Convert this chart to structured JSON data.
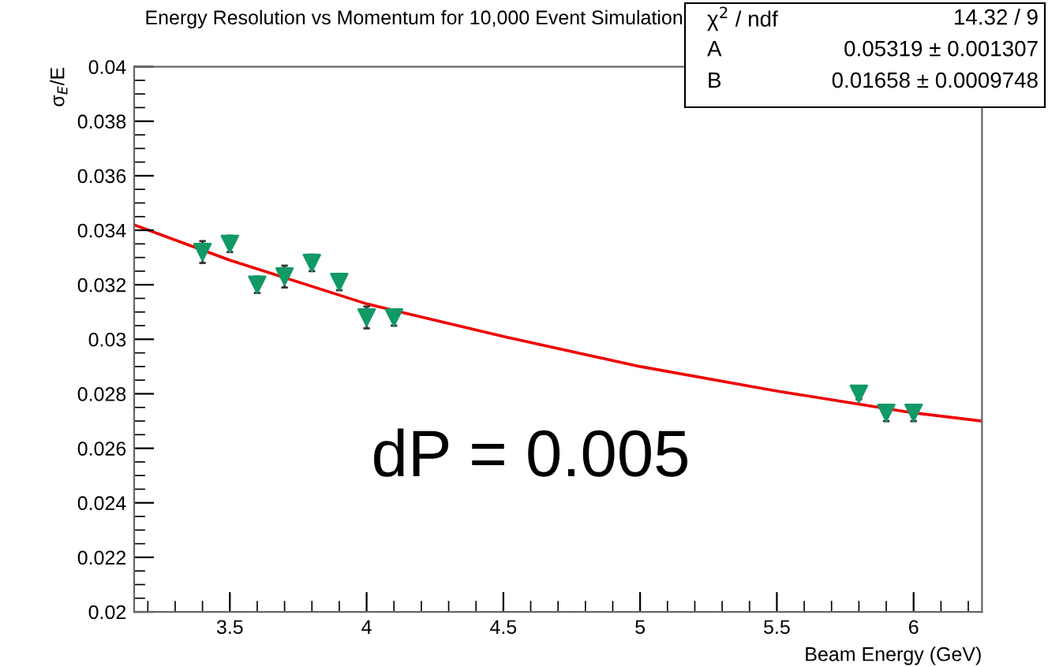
{
  "chart_data": {
    "type": "scatter",
    "title": "Energy Resolution vs Momentum for 10,000 Event Simulation",
    "xlabel": "Beam Energy (GeV)",
    "ylabel": "σ$_{E}$/E",
    "xlim": [
      3.15,
      6.25
    ],
    "ylim": [
      0.02,
      0.04
    ],
    "xticks": [
      3.5,
      4,
      4.5,
      5,
      5.5,
      6
    ],
    "yticks": [
      0.02,
      0.022,
      0.024,
      0.026,
      0.028,
      0.03,
      0.032,
      0.034,
      0.036,
      0.038,
      0.04
    ],
    "grid": false,
    "series": [
      {
        "marker": "triangle",
        "color": "#119966",
        "x": [
          3.4,
          3.5,
          3.6,
          3.7,
          3.8,
          3.9,
          4.0,
          4.1,
          5.8,
          5.9,
          6.0
        ],
        "values": [
          0.0332,
          0.0335,
          0.032,
          0.0323,
          0.0328,
          0.0321,
          0.0308,
          0.0308,
          0.028,
          0.0273,
          0.0273
        ],
        "errors": [
          0.0004,
          0.0003,
          0.0003,
          0.0004,
          0.0003,
          0.0003,
          0.0004,
          0.0003,
          0.0002,
          0.0003,
          0.0003
        ]
      },
      {
        "type": "line",
        "color": "#ee0000",
        "x": [
          3.15,
          3.5,
          4,
          4.5,
          5,
          5.5,
          6,
          6.25
        ],
        "values": [
          0.0342,
          0.0329,
          0.0313,
          0.0301,
          0.029,
          0.0281,
          0.0273,
          0.027
        ]
      }
    ],
    "annotations": [
      "χ$^{2}$ / ndf",
      "14.32 / 9",
      "A",
      "0.05319 ± 0.001307",
      "B",
      "0.01658 ± 0.0009748",
      "dP = 0.005"
    ]
  }
}
